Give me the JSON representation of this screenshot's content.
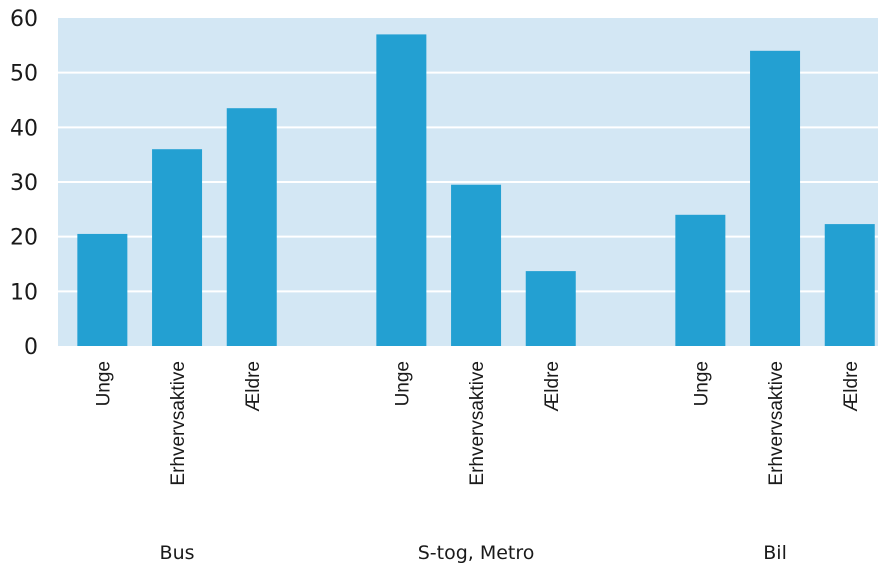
{
  "chart_data": {
    "type": "bar",
    "title": "",
    "xlabel": "",
    "ylabel": "",
    "ylim": [
      0,
      60
    ],
    "yticks": [
      0,
      10,
      20,
      30,
      40,
      50,
      60
    ],
    "grid": true,
    "groups": [
      {
        "name": "Bus",
        "categories": [
          "Unge",
          "Erhvervsaktive",
          "Ældre"
        ],
        "values": [
          20.5,
          36.0,
          43.5
        ]
      },
      {
        "name": "S-tog, Metro",
        "categories": [
          "Unge",
          "Erhvervsaktive",
          "Ældre"
        ],
        "values": [
          57.0,
          29.5,
          13.7
        ]
      },
      {
        "name": "Bil",
        "categories": [
          "Unge",
          "Erhvervsaktive",
          "Ældre"
        ],
        "values": [
          24.0,
          54.0,
          22.3
        ]
      }
    ],
    "colors": {
      "bar": "#23a0d2",
      "plot_background": "#d3e7f4",
      "grid": "#ffffff"
    }
  }
}
